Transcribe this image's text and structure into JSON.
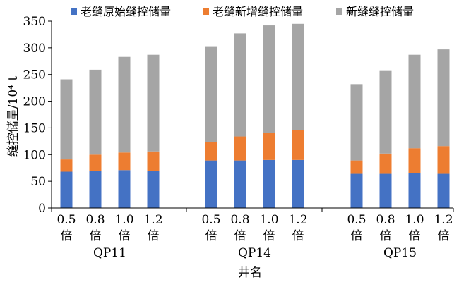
{
  "chart_data": {
    "type": "bar",
    "stacked": true,
    "title": "",
    "xlabel": "井名",
    "ylabel": "缝控储量/10⁴ t",
    "ylim": [
      0,
      350
    ],
    "yticks": [
      0,
      50,
      100,
      150,
      200,
      250,
      300,
      350
    ],
    "grid": false,
    "legend_position": "top",
    "groups": [
      {
        "name": "QP11",
        "categories": [
          "0.5 倍",
          "0.8 倍",
          "1.0 倍",
          "1.2 倍"
        ]
      },
      {
        "name": "QP14",
        "categories": [
          "0.5 倍",
          "0.8 倍",
          "1.0 倍",
          "1.2 倍"
        ]
      },
      {
        "name": "QP15",
        "categories": [
          "0.5 倍",
          "0.8 倍",
          "1.0 倍",
          "1.2 倍"
        ]
      }
    ],
    "series": [
      {
        "name": "老缝原始缝控储量",
        "color": "#4472C4",
        "values": [
          68,
          70,
          71,
          70,
          89,
          89,
          90,
          90,
          64,
          64,
          65,
          64
        ]
      },
      {
        "name": "老缝新增缝控储量",
        "color": "#ED7D31",
        "values": [
          23,
          30,
          33,
          36,
          34,
          45,
          51,
          56,
          25,
          38,
          47,
          52
        ]
      },
      {
        "name": "新缝缝控储量",
        "color": "#A5A5A5",
        "values": [
          150,
          159,
          179,
          181,
          180,
          193,
          201,
          199,
          143,
          156,
          175,
          181
        ]
      }
    ]
  }
}
